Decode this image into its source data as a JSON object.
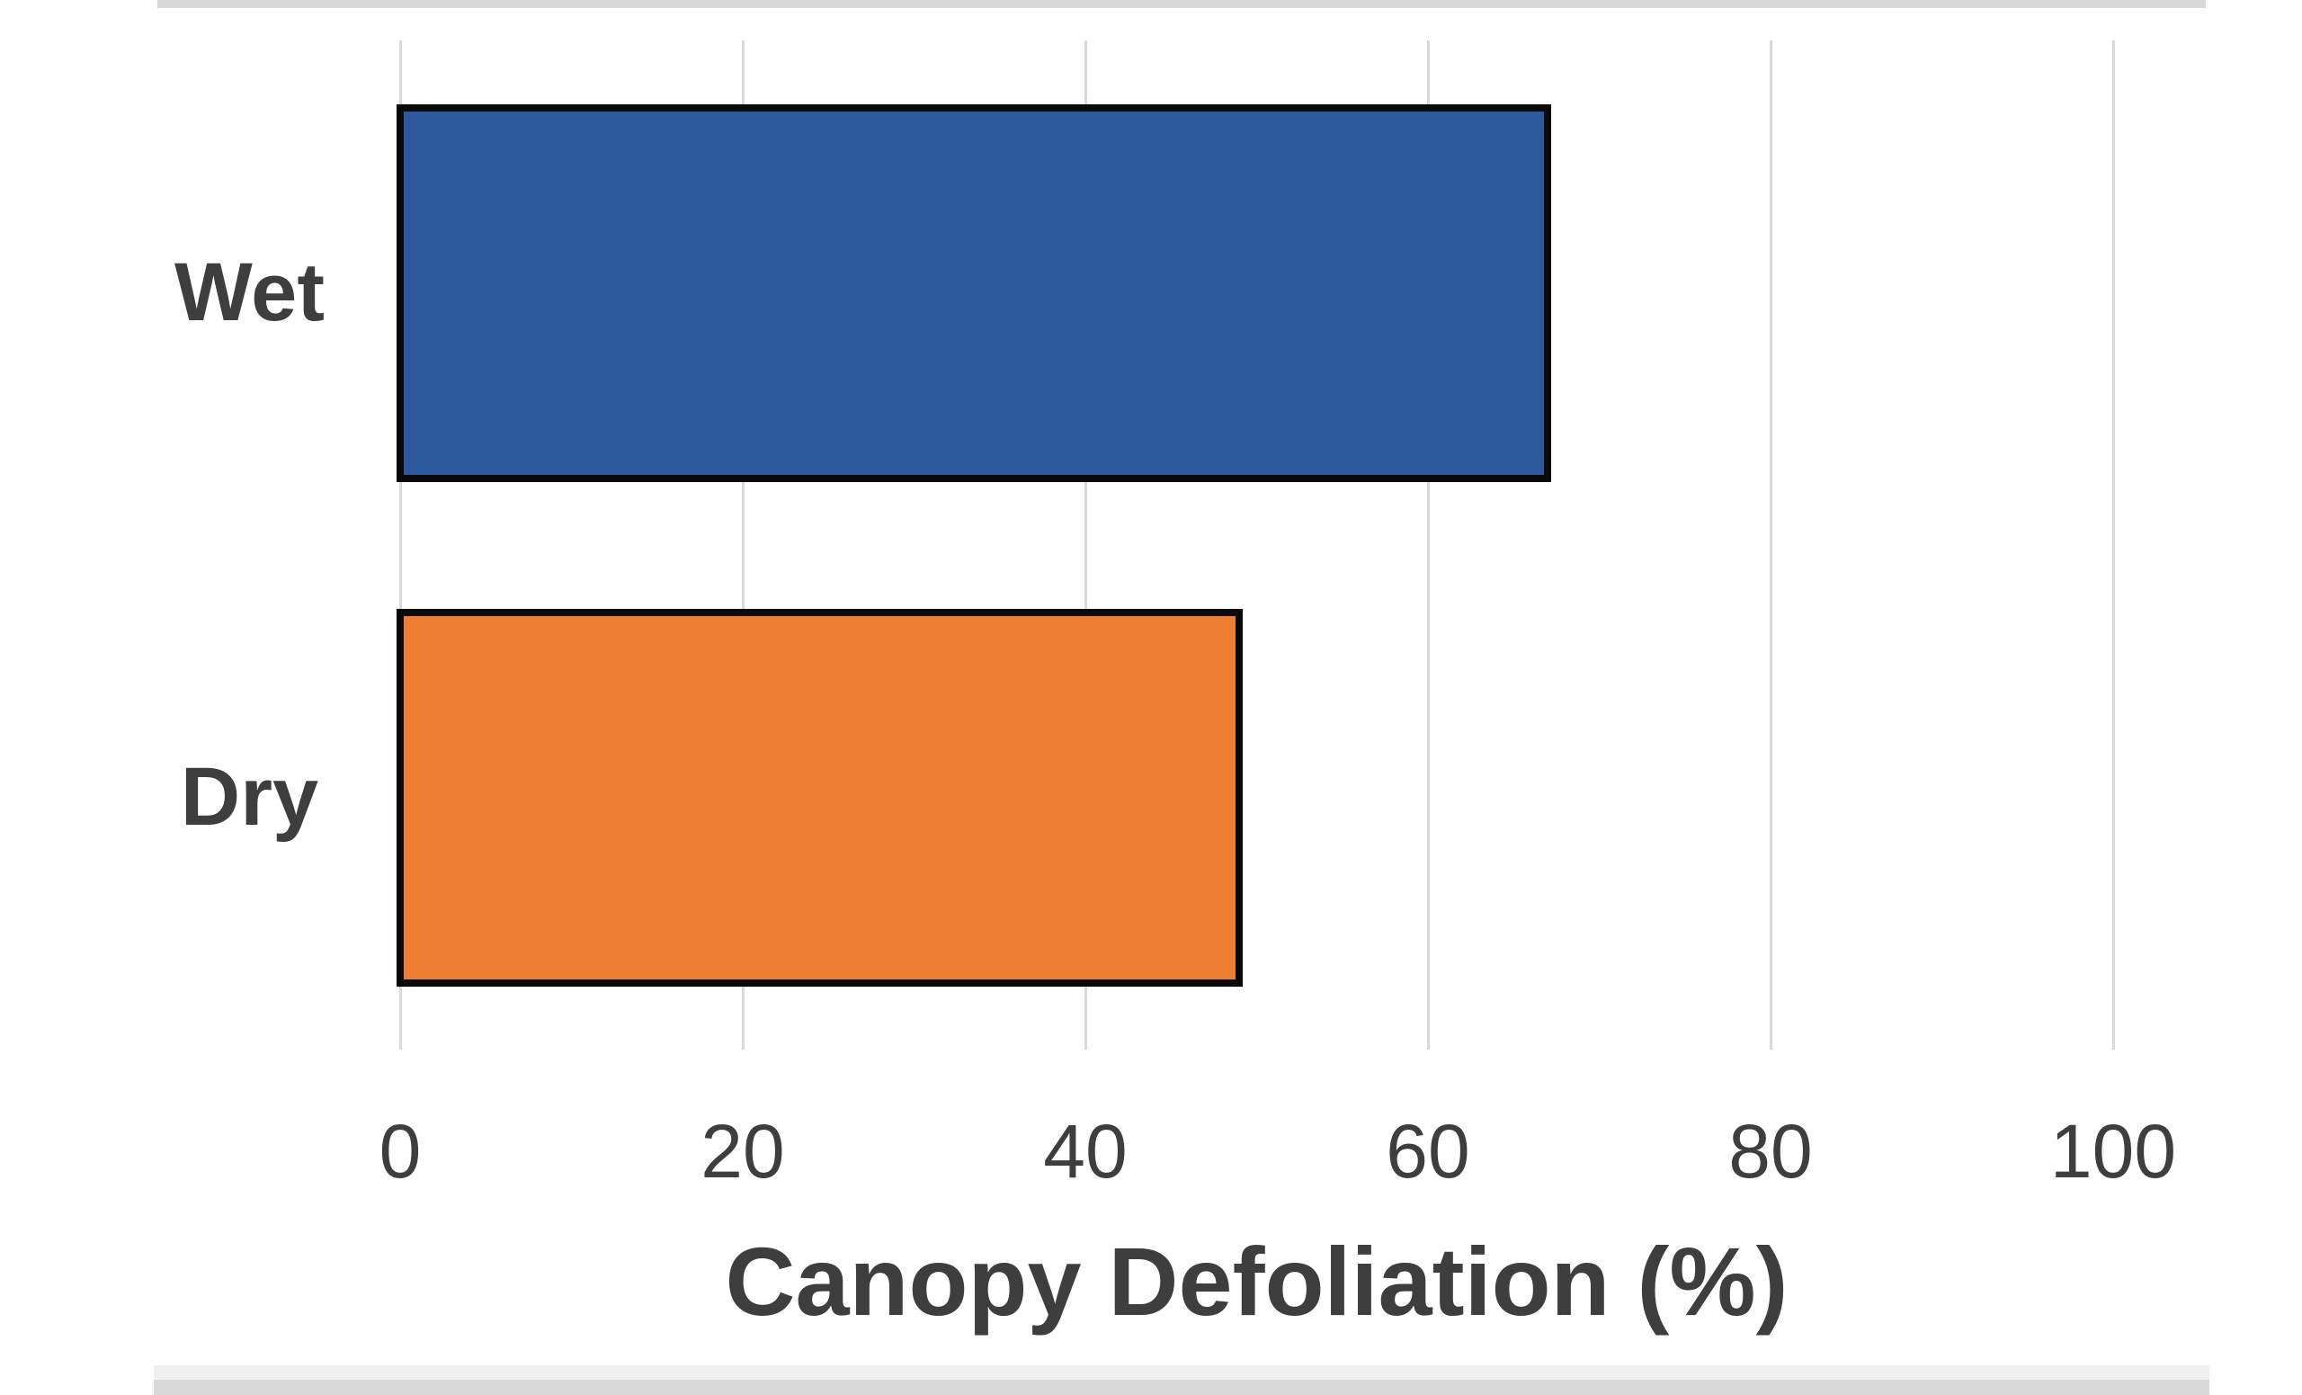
{
  "chart_data": {
    "type": "bar",
    "orientation": "horizontal",
    "categories": [
      "Wet",
      "Dry"
    ],
    "values": [
      67,
      49
    ],
    "series": [
      {
        "name": "Canopy Defoliation",
        "values": [
          67,
          49
        ]
      }
    ],
    "title": "",
    "xlabel": "Canopy Defoliation (%)",
    "ylabel": "",
    "xlim": [
      0,
      100
    ],
    "xticks": [
      0,
      20,
      40,
      60,
      80,
      100
    ],
    "xtick_labels": [
      "0",
      "20",
      "40",
      "60",
      "80",
      "100"
    ],
    "grid": true,
    "legend": false,
    "bar_colors": [
      "#2d599e",
      "#ed7d31"
    ],
    "bar_border_color": "#0a0a0a",
    "gridline_color": "#d9d9d9",
    "text_color": "#3e3e3e",
    "plot_background": "#ffffff"
  },
  "page": {
    "background": "#ffffff",
    "top_edge_color": "#d8d8d8",
    "bottom_edge_color": "#d9d9d9",
    "bottom_edge_light_color": "#efefef"
  }
}
